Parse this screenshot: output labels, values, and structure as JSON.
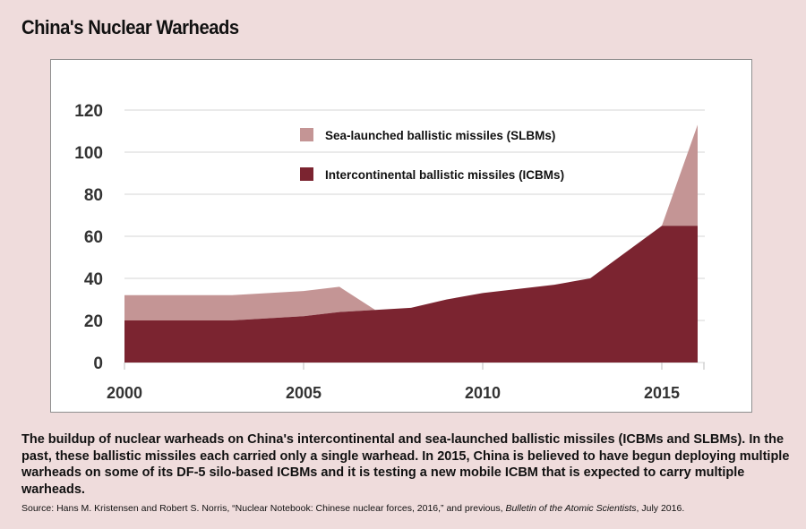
{
  "title": "China's Nuclear Warheads",
  "caption": "The buildup of nuclear warheads on China's intercontinental and sea-launched ballistic missiles (ICBMs and SLBMs). In the past, these ballistic missiles each carried only a single warhead. In 2015, China is believed to have begun deploying multiple warheads on some of its DF-5 silo-based ICBMs and it is testing a new mobile ICBM that is expected to carry multiple warheads.",
  "source": {
    "prefix": "Source: Hans M. Kristensen and Robert S. Norris, “Nuclear Notebook: Chinese nuclear forces, 2016,” and previous, ",
    "journal": "Bulletin of the Atomic Scientists",
    "suffix": ", July 2016."
  },
  "chart_data": {
    "type": "area",
    "stacked": true,
    "title": "",
    "xlabel": "",
    "ylabel": "",
    "xlim": [
      2000,
      2016.2
    ],
    "ylim": [
      0,
      120
    ],
    "yticks": [
      0,
      20,
      40,
      60,
      80,
      100,
      120
    ],
    "xticks": [
      2000,
      2005,
      2010,
      2015
    ],
    "grid": "horizontal",
    "legend_position": "top-center",
    "series": [
      {
        "name": "Intercontinental ballistic missiles (ICBMs)",
        "color": "#7b2430",
        "points": [
          [
            2000,
            20
          ],
          [
            2003,
            20
          ],
          [
            2005,
            22
          ],
          [
            2006,
            24
          ],
          [
            2007,
            25
          ],
          [
            2008,
            26
          ],
          [
            2009,
            30
          ],
          [
            2010,
            33
          ],
          [
            2012,
            37
          ],
          [
            2013,
            40
          ],
          [
            2015,
            65
          ],
          [
            2016,
            65
          ]
        ]
      },
      {
        "name": "Sea-launched ballistic missiles (SLBMs)",
        "color": "#c49595",
        "points": [
          [
            2000,
            12
          ],
          [
            2003,
            12
          ],
          [
            2005,
            12
          ],
          [
            2006,
            12
          ],
          [
            2007,
            0
          ],
          [
            2008,
            0
          ],
          [
            2009,
            0
          ],
          [
            2010,
            0
          ],
          [
            2012,
            0
          ],
          [
            2013,
            0
          ],
          [
            2015,
            0
          ],
          [
            2016,
            48
          ]
        ]
      }
    ]
  }
}
